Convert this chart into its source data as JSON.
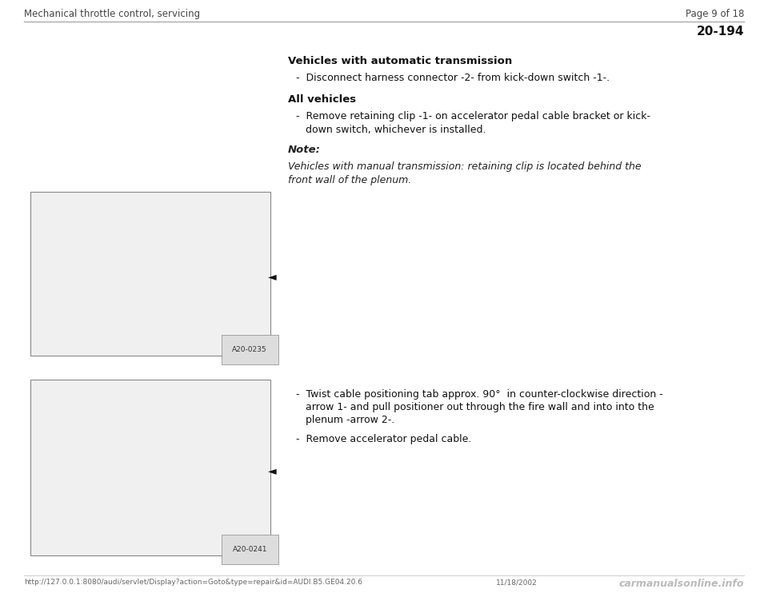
{
  "header_left": "Mechanical throttle control, servicing",
  "header_right": "Page 9 of 18",
  "section_number": "20-194",
  "bg_color": "#ffffff",
  "header_line_color": "#aaaaaa",
  "header_text_color": "#444444",
  "section1_heading": "Vehicles with automatic transmission",
  "section1_bullet": "-  Disconnect harness connector -2- from kick-down switch -1-.",
  "section2_heading": "All vehicles",
  "section2_bullet1": "-  Remove retaining clip -1- on accelerator pedal cable bracket or kick-",
  "section2_bullet2": "   down switch, whichever is installed.",
  "note_heading": "Note:",
  "note_line1": "Vehicles with manual transmission: retaining clip is located behind the",
  "note_line2": "front wall of the plenum.",
  "s3_bullet1a": "-  Twist cable positioning tab approx. 90°  in counter-clockwise direction -",
  "s3_bullet1b": "   arrow 1- and pull positioner out through the fire wall and into into the",
  "s3_bullet1c": "   plenum -arrow 2-.",
  "s3_bullet2": "-  Remove accelerator pedal cable.",
  "img1_label": "A20-0235",
  "img2_label": "A20-0241",
  "footer_url": "http://127.0.0.1:8080/audi/servlet/Display?action=Goto&type=repair&id=AUDI.B5.GE04.20.6",
  "footer_date": "11/18/2002",
  "footer_watermark": "carmanualsonline.info",
  "img_border_color": "#888888",
  "img_bg_color": "#f0f0f0",
  "text_color": "#111111",
  "note_color": "#222222"
}
